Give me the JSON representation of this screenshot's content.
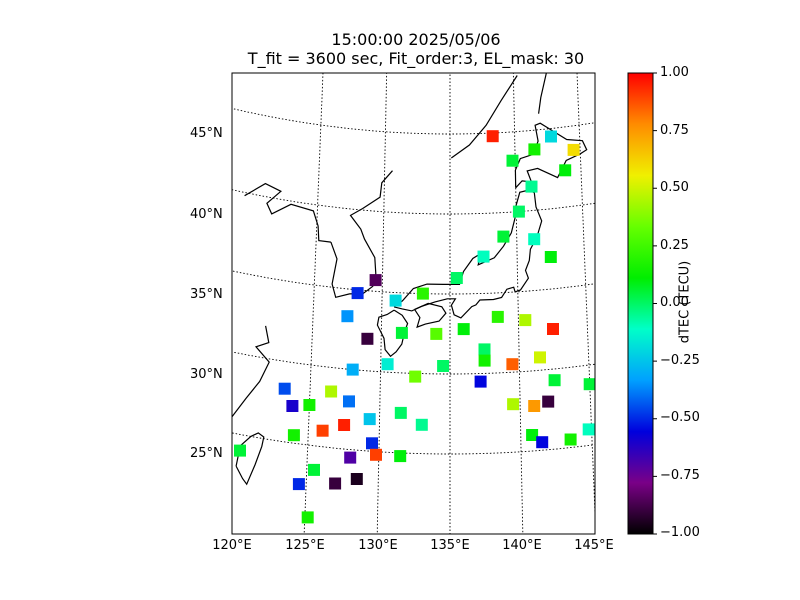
{
  "chart_data": {
    "type": "heatmap",
    "title": "15:00:00 2025/05/06",
    "subtitle": "T_fit = 3600 sec, Fit_order:3, EL_mask: 30",
    "lat_ticks": [
      "25°N",
      "30°N",
      "35°N",
      "40°N",
      "45°N"
    ],
    "lon_ticks": [
      "120°E",
      "125°E",
      "130°E",
      "135°E",
      "140°E",
      "145°E"
    ],
    "lon_range": [
      120,
      145
    ],
    "lat_range": [
      20,
      49
    ],
    "colorbar": {
      "label": "dTEC (TECU)",
      "range": [
        -1.0,
        1.0
      ],
      "ticks": [
        "1.00",
        "0.75",
        "0.50",
        "0.25",
        "0.00",
        "−0.25",
        "−0.50",
        "−0.75",
        "−1.00"
      ],
      "colormap": "nipy_spectral",
      "colors": [
        "#000000",
        "#7a0087",
        "#0000dd",
        "#00a0ff",
        "#00ffc8",
        "#00ee00",
        "#66ff00",
        "#f0f000",
        "#ff8c00",
        "#ff0000"
      ]
    },
    "grid": true,
    "cell_values_tecu": [
      {
        "lon": 138.3,
        "lat": 44.8,
        "v": 0.95
      },
      {
        "lon": 139.8,
        "lat": 43.2,
        "v": 0.05
      },
      {
        "lon": 141.5,
        "lat": 43.8,
        "v": 0.15
      },
      {
        "lon": 142.8,
        "lat": 44.5,
        "v": -0.2
      },
      {
        "lon": 144.5,
        "lat": 43.5,
        "v": 0.6
      },
      {
        "lon": 143.8,
        "lat": 42.3,
        "v": 0.1
      },
      {
        "lon": 141.2,
        "lat": 41.5,
        "v": -0.05
      },
      {
        "lon": 140.2,
        "lat": 40.0,
        "v": 0.0
      },
      {
        "lon": 139.0,
        "lat": 38.5,
        "v": 0.05
      },
      {
        "lon": 141.3,
        "lat": 38.2,
        "v": -0.1
      },
      {
        "lon": 142.5,
        "lat": 37.0,
        "v": 0.1
      },
      {
        "lon": 137.5,
        "lat": 37.3,
        "v": -0.1
      },
      {
        "lon": 135.5,
        "lat": 36.0,
        "v": 0.0
      },
      {
        "lon": 133.0,
        "lat": 35.0,
        "v": 0.2
      },
      {
        "lon": 131.0,
        "lat": 34.5,
        "v": -0.2
      },
      {
        "lon": 129.5,
        "lat": 35.7,
        "v": -0.85
      },
      {
        "lon": 128.2,
        "lat": 34.8,
        "v": -0.5
      },
      {
        "lon": 127.5,
        "lat": 33.3,
        "v": -0.35
      },
      {
        "lon": 129.0,
        "lat": 32.0,
        "v": -0.9
      },
      {
        "lon": 131.5,
        "lat": 32.5,
        "v": 0.05
      },
      {
        "lon": 134.0,
        "lat": 32.5,
        "v": 0.3
      },
      {
        "lon": 136.0,
        "lat": 32.8,
        "v": 0.1
      },
      {
        "lon": 138.5,
        "lat": 33.5,
        "v": 0.2
      },
      {
        "lon": 140.5,
        "lat": 33.2,
        "v": 0.45
      },
      {
        "lon": 142.5,
        "lat": 32.5,
        "v": 0.95
      },
      {
        "lon": 141.5,
        "lat": 30.8,
        "v": 0.5
      },
      {
        "lon": 139.5,
        "lat": 30.5,
        "v": 0.85
      },
      {
        "lon": 137.5,
        "lat": 31.5,
        "v": 0.0
      },
      {
        "lon": 134.5,
        "lat": 30.5,
        "v": 0.0
      },
      {
        "lon": 132.5,
        "lat": 29.8,
        "v": 0.35
      },
      {
        "lon": 130.5,
        "lat": 30.5,
        "v": -0.15
      },
      {
        "lon": 128.0,
        "lat": 30.0,
        "v": -0.3
      },
      {
        "lon": 126.5,
        "lat": 28.5,
        "v": 0.45
      },
      {
        "lon": 125.0,
        "lat": 27.5,
        "v": 0.15
      },
      {
        "lon": 127.8,
        "lat": 28.0,
        "v": -0.4
      },
      {
        "lon": 129.3,
        "lat": 27.0,
        "v": -0.25
      },
      {
        "lon": 131.5,
        "lat": 27.5,
        "v": 0.0
      },
      {
        "lon": 133.0,
        "lat": 26.8,
        "v": -0.05
      },
      {
        "lon": 129.5,
        "lat": 25.5,
        "v": -0.5
      },
      {
        "lon": 131.5,
        "lat": 24.8,
        "v": 0.1
      },
      {
        "lon": 127.5,
        "lat": 26.5,
        "v": 0.95
      },
      {
        "lon": 126.0,
        "lat": 26.0,
        "v": 0.9
      },
      {
        "lon": 128.0,
        "lat": 24.5,
        "v": -0.7
      },
      {
        "lon": 128.5,
        "lat": 23.2,
        "v": -0.95
      },
      {
        "lon": 127.0,
        "lat": 22.8,
        "v": -0.9
      },
      {
        "lon": 125.5,
        "lat": 23.5,
        "v": 0.05
      },
      {
        "lon": 124.5,
        "lat": 22.5,
        "v": -0.5
      },
      {
        "lon": 125.2,
        "lat": 20.5,
        "v": 0.15
      },
      {
        "lon": 124.0,
        "lat": 25.5,
        "v": 0.15
      },
      {
        "lon": 123.2,
        "lat": 28.3,
        "v": -0.45
      },
      {
        "lon": 123.8,
        "lat": 27.3,
        "v": -0.6
      },
      {
        "lon": 129.8,
        "lat": 24.8,
        "v": 0.9
      },
      {
        "lon": 120.3,
        "lat": 24.0,
        "v": 0.05
      },
      {
        "lon": 142.0,
        "lat": 28.0,
        "v": -0.9
      },
      {
        "lon": 141.0,
        "lat": 27.8,
        "v": 0.75
      },
      {
        "lon": 140.8,
        "lat": 26.0,
        "v": 0.1
      },
      {
        "lon": 141.5,
        "lat": 25.5,
        "v": -0.55
      },
      {
        "lon": 143.5,
        "lat": 25.5,
        "v": 0.15
      },
      {
        "lon": 144.8,
        "lat": 26.0,
        "v": -0.1
      },
      {
        "lon": 145.0,
        "lat": 28.8,
        "v": 0.05
      },
      {
        "lon": 139.5,
        "lat": 28.0,
        "v": 0.45
      },
      {
        "lon": 142.5,
        "lat": 29.3,
        "v": 0.05
      },
      {
        "lon": 137.2,
        "lat": 29.5,
        "v": -0.55
      },
      {
        "lon": 137.5,
        "lat": 30.8,
        "v": 0.15
      }
    ]
  }
}
